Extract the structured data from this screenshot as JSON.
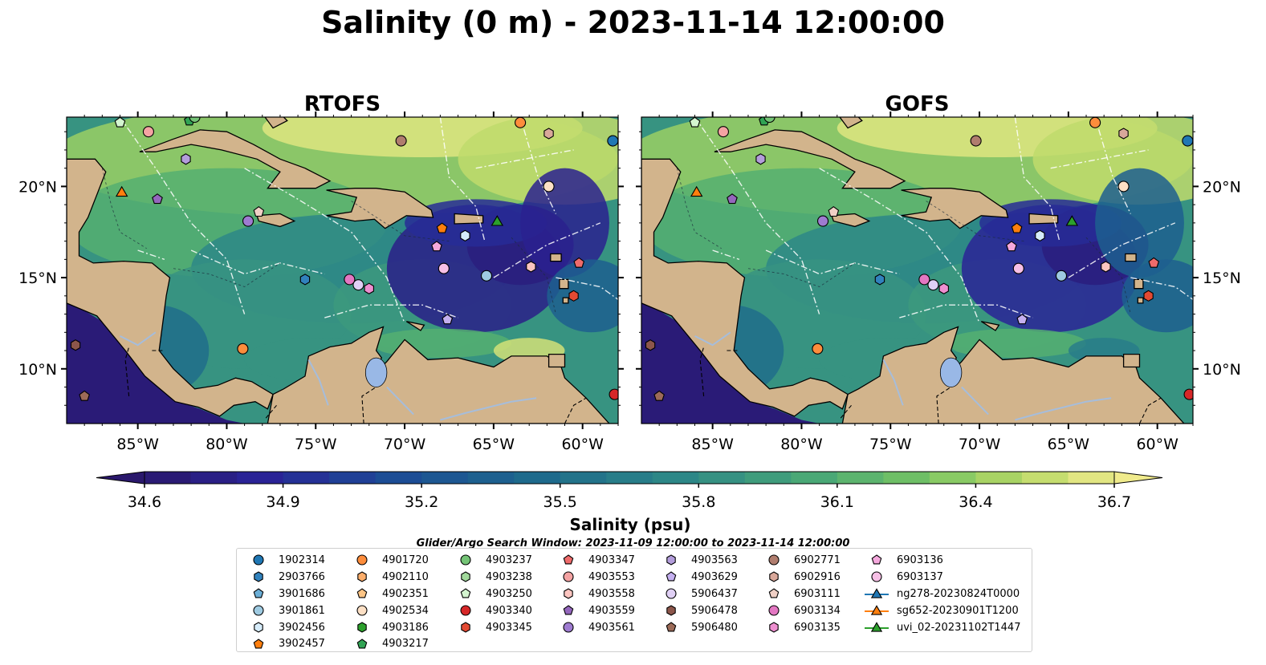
{
  "figure": {
    "title": "Salinity (0 m) - 2023-11-14 12:00:00",
    "search_window": "Glider/Argo Search Window: 2023-11-09 12:00:00 to 2023-11-14 12:00:00"
  },
  "panels": [
    {
      "title": "RTOFS"
    },
    {
      "title": "GOFS"
    }
  ],
  "map_extent": {
    "lon_min": -89,
    "lon_max": -58,
    "lat_min": 7,
    "lat_max": 23.8
  },
  "axes": {
    "lon_ticks": [
      "85°W",
      "80°W",
      "75°W",
      "70°W",
      "65°W",
      "60°W"
    ],
    "lon_values": [
      -85,
      -80,
      -75,
      -70,
      -65,
      -60
    ],
    "lat_ticks": [
      "20°N",
      "15°N",
      "10°N"
    ],
    "lat_values": [
      20,
      15,
      10
    ]
  },
  "colorbar": {
    "label": "Salinity (psu)",
    "min": 34.6,
    "max": 36.7,
    "step": 0.1,
    "tick_values": [
      34.6,
      34.9,
      35.2,
      35.5,
      35.8,
      36.1,
      36.4,
      36.7
    ],
    "tick_labels": [
      "34.6",
      "34.9",
      "35.2",
      "35.5",
      "35.8",
      "36.1",
      "36.4",
      "36.7"
    ],
    "extend": "both",
    "colormap": "haline"
  },
  "colors": {
    "land": "#d2b48c",
    "river": "#a6bddb",
    "lake": "#99b8e6",
    "fresh": "#2a1e6c",
    "mid": "#2f7f8c",
    "salty": "#6fc26a",
    "high": "#e6e27a"
  },
  "legend": {
    "columns": [
      [
        {
          "label": "1902314",
          "marker": "circle",
          "color": "#1f77b4"
        },
        {
          "label": "2903766",
          "marker": "hexagon",
          "color": "#3182bd"
        },
        {
          "label": "3901686",
          "marker": "pentagon",
          "color": "#6baed6"
        },
        {
          "label": "3901861",
          "marker": "circle",
          "color": "#9ecae1"
        },
        {
          "label": "3902456",
          "marker": "hexagon",
          "color": "#d6ecfa"
        },
        {
          "label": "3902457",
          "marker": "pentagon",
          "color": "#ff7f0e"
        }
      ],
      [
        {
          "label": "4901720",
          "marker": "circle",
          "color": "#fd8d3c"
        },
        {
          "label": "4902110",
          "marker": "hexagon",
          "color": "#fdae6b"
        },
        {
          "label": "4902351",
          "marker": "pentagon",
          "color": "#fdc586"
        },
        {
          "label": "4902534",
          "marker": "circle",
          "color": "#fde0c5"
        },
        {
          "label": "4903186",
          "marker": "hexagon",
          "color": "#2ca02c"
        },
        {
          "label": "4903217",
          "marker": "pentagon",
          "color": "#31a354"
        }
      ],
      [
        {
          "label": "4903237",
          "marker": "circle",
          "color": "#74c476"
        },
        {
          "label": "4903238",
          "marker": "hexagon",
          "color": "#a1d99b"
        },
        {
          "label": "4903250",
          "marker": "pentagon",
          "color": "#d4f5d0"
        },
        {
          "label": "4903340",
          "marker": "circle",
          "color": "#d62728"
        },
        {
          "label": "4903345",
          "marker": "hexagon",
          "color": "#e34a33"
        }
      ],
      [
        {
          "label": "4903347",
          "marker": "pentagon",
          "color": "#ef6b6b"
        },
        {
          "label": "4903553",
          "marker": "circle",
          "color": "#f4a3a3"
        },
        {
          "label": "4903558",
          "marker": "hexagon",
          "color": "#fcc5c0"
        },
        {
          "label": "4903559",
          "marker": "pentagon",
          "color": "#9467bd"
        },
        {
          "label": "4903561",
          "marker": "circle",
          "color": "#9e7bd0"
        }
      ],
      [
        {
          "label": "4903563",
          "marker": "hexagon",
          "color": "#b39ddb"
        },
        {
          "label": "4903629",
          "marker": "pentagon",
          "color": "#c5b0f0"
        },
        {
          "label": "5906437",
          "marker": "circle",
          "color": "#e0d0f5"
        },
        {
          "label": "5906478",
          "marker": "hexagon",
          "color": "#8c564b"
        },
        {
          "label": "5906480",
          "marker": "pentagon",
          "color": "#9c6b58"
        }
      ],
      [
        {
          "label": "6902771",
          "marker": "circle",
          "color": "#b07d6e"
        },
        {
          "label": "6902916",
          "marker": "hexagon",
          "color": "#d9a89a"
        },
        {
          "label": "6903111",
          "marker": "pentagon",
          "color": "#f0d0c6"
        },
        {
          "label": "6903134",
          "marker": "circle",
          "color": "#e377c2"
        },
        {
          "label": "6903135",
          "marker": "hexagon",
          "color": "#ee8fd0"
        }
      ],
      [
        {
          "label": "6903136",
          "marker": "pentagon",
          "color": "#f5a8dd"
        },
        {
          "label": "6903137",
          "marker": "circle",
          "color": "#f7c0e6"
        },
        {
          "label": "ng278-20230824T0000",
          "marker": "triangle-line",
          "color": "#1f77b4"
        },
        {
          "label": "sg652-20230901T1200",
          "marker": "triangle-line",
          "color": "#ff7f0e"
        },
        {
          "label": "uvi_02-20231102T1447",
          "marker": "triangle-line",
          "color": "#2ca02c"
        }
      ]
    ]
  },
  "platform_locations": [
    {
      "id": "1902314",
      "lon": -58.3,
      "lat": 22.5
    },
    {
      "id": "2903766",
      "lon": -75.6,
      "lat": 14.9
    },
    {
      "id": "3901686",
      "lon": -78.8,
      "lat": 18.1
    },
    {
      "id": "3901861",
      "lon": -65.4,
      "lat": 15.1
    },
    {
      "id": "3902456",
      "lon": -66.6,
      "lat": 17.3
    },
    {
      "id": "3902457",
      "lon": -67.9,
      "lat": 17.7
    },
    {
      "id": "4901720",
      "lon": -79.1,
      "lat": 11.1
    },
    {
      "id": "4902534",
      "lon": -61.9,
      "lat": 20.0
    },
    {
      "id": "4903217",
      "lon": -82.1,
      "lat": 23.6
    },
    {
      "id": "4903250",
      "lon": -86.0,
      "lat": 23.5
    },
    {
      "id": "4903340",
      "lon": -58.2,
      "lat": 8.6
    },
    {
      "id": "4903345",
      "lon": -60.5,
      "lat": 14.0
    },
    {
      "id": "4903347",
      "lon": -60.2,
      "lat": 15.8
    },
    {
      "id": "4903553",
      "lon": -84.4,
      "lat": 23.0
    },
    {
      "id": "4903558",
      "lon": -62.9,
      "lat": 15.6
    },
    {
      "id": "4903559",
      "lon": -83.9,
      "lat": 19.3
    },
    {
      "id": "4903561",
      "lon": -78.8,
      "lat": 18.1
    },
    {
      "id": "4903563",
      "lon": -82.3,
      "lat": 21.5
    },
    {
      "id": "4903629",
      "lon": -67.6,
      "lat": 12.7
    },
    {
      "id": "5906437",
      "lon": -72.6,
      "lat": 14.6
    },
    {
      "id": "5906478",
      "lon": -88.5,
      "lat": 11.3
    },
    {
      "id": "5906480",
      "lon": -88.0,
      "lat": 8.5
    },
    {
      "id": "6902771",
      "lon": -70.2,
      "lat": 22.5
    },
    {
      "id": "6902916",
      "lon": -61.9,
      "lat": 22.9
    },
    {
      "id": "6903111",
      "lon": -78.2,
      "lat": 18.6
    },
    {
      "id": "6903134",
      "lon": -73.1,
      "lat": 14.9
    },
    {
      "id": "6903135",
      "lon": -72.0,
      "lat": 14.4
    },
    {
      "id": "6903136",
      "lon": -68.2,
      "lat": 16.7
    },
    {
      "id": "6903137",
      "lon": -67.8,
      "lat": 15.5
    },
    {
      "id": "4903237",
      "lon": -81.8,
      "lat": 23.8
    },
    {
      "id": "4901720b",
      "lon": -63.5,
      "lat": 23.5
    },
    {
      "id": "sg652-20230901T1200",
      "lon": -85.9,
      "lat": 19.7
    },
    {
      "id": "uvi_02-20231102T1447",
      "lon": -64.8,
      "lat": 18.1
    }
  ]
}
